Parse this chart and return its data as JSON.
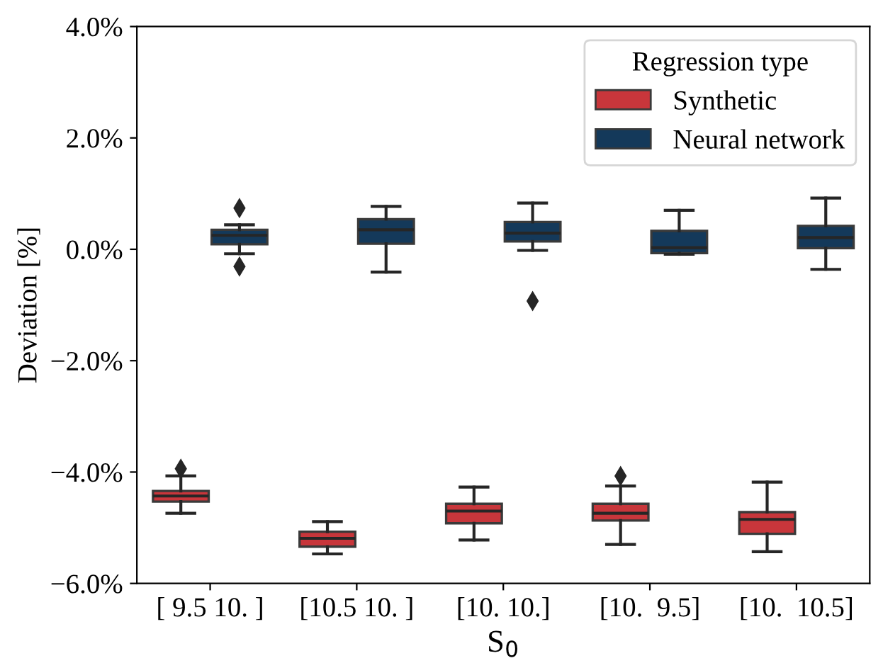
{
  "chart_data": {
    "type": "box",
    "xlabel": "S$_{0}$",
    "ylabel": "Deviation [%]",
    "legend_title": "Regression type",
    "legend": "top right",
    "grid": false,
    "marker": "diamond",
    "categories": [
      "[ 9.5 10. ]",
      "[10.5 10. ]",
      "[10. 10.]",
      "[10.  9.5]",
      "[10.  10.5]"
    ],
    "ylim": [
      -6,
      4
    ],
    "yticks": [
      {
        "value": -6,
        "label": "−6.0%"
      },
      {
        "value": -4,
        "label": "−4.0%"
      },
      {
        "value": -2,
        "label": "−2.0%"
      },
      {
        "value": 0,
        "label": "0.0%"
      },
      {
        "value": 2,
        "label": "2.0%"
      },
      {
        "value": 4,
        "label": "4.0%"
      }
    ],
    "series": [
      {
        "name": "Synthetic",
        "color": "#c8363b",
        "boxes": [
          {
            "low": -4.74,
            "q1": -4.53,
            "median": -4.43,
            "q3": -4.34,
            "high": -4.07,
            "outliers": [
              -3.94
            ]
          },
          {
            "low": -5.47,
            "q1": -5.34,
            "median": -5.19,
            "q3": -5.07,
            "high": -4.89
          },
          {
            "low": -5.22,
            "q1": -4.92,
            "median": -4.7,
            "q3": -4.57,
            "high": -4.27
          },
          {
            "low": -5.3,
            "q1": -4.87,
            "median": -4.74,
            "q3": -4.57,
            "high": -4.25,
            "outliers": [
              -4.07
            ]
          },
          {
            "low": -5.43,
            "q1": -5.11,
            "median": -4.85,
            "q3": -4.72,
            "high": -4.18
          }
        ]
      },
      {
        "name": "Neural network",
        "color": "#14395a",
        "boxes": [
          {
            "low": -0.08,
            "q1": 0.09,
            "median": 0.25,
            "q3": 0.35,
            "high": 0.44,
            "outliers": [
              0.74,
              -0.31
            ]
          },
          {
            "low": -0.41,
            "q1": 0.1,
            "median": 0.35,
            "q3": 0.54,
            "high": 0.77
          },
          {
            "low": -0.02,
            "q1": 0.14,
            "median": 0.29,
            "q3": 0.49,
            "high": 0.83,
            "outliers": [
              -0.93
            ]
          },
          {
            "low": -0.09,
            "q1": -0.07,
            "median": 0.03,
            "q3": 0.33,
            "high": 0.7
          },
          {
            "low": -0.36,
            "q1": 0.02,
            "median": 0.21,
            "q3": 0.42,
            "high": 0.92
          }
        ]
      }
    ]
  }
}
